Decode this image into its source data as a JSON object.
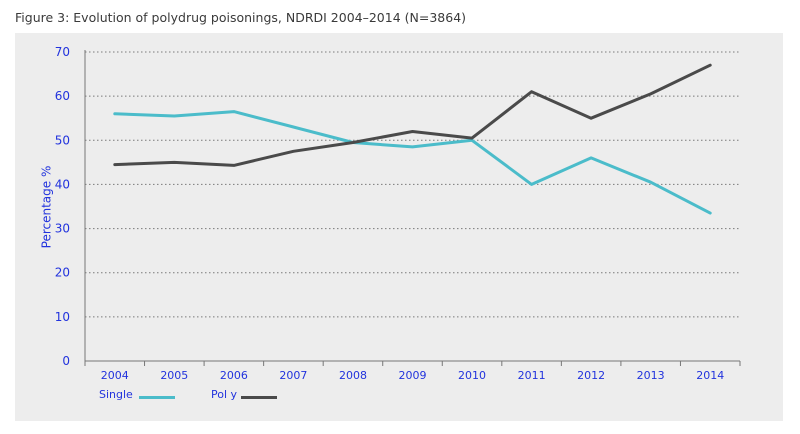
{
  "figure": {
    "title": "Figure 3: Evolution of polydrug poisonings, NDRDI 2004–2014 (N=3864)"
  },
  "colors": {
    "background": "#ffffff",
    "panel": "#ededed",
    "axis_text": "#2233dd",
    "grid": "#7a7a7a",
    "single": "#4bbcca",
    "poly": "#4a4a4a"
  },
  "chart_data": {
    "type": "line",
    "title": "Figure 3: Evolution of polydrug poisonings, NDRDI 2004–2014 (N=3864)",
    "xlabel": "",
    "ylabel": "Percentage %",
    "categories": [
      "2004",
      "2005",
      "2006",
      "2007",
      "2008",
      "2009",
      "2010",
      "2011",
      "2012",
      "2013",
      "2014"
    ],
    "ylim": [
      0,
      70
    ],
    "yticks": [
      0,
      10,
      20,
      30,
      40,
      50,
      60,
      70
    ],
    "grid": "horizontal dotted",
    "legend_position": "bottom-left",
    "series": [
      {
        "name": "Single",
        "color": "#4bbcca",
        "values": [
          56,
          55.5,
          56.5,
          53,
          49.5,
          48.5,
          50,
          40,
          46,
          40.5,
          33.5
        ]
      },
      {
        "name": "Pol y",
        "color": "#4a4a4a",
        "values": [
          44.5,
          45,
          44.3,
          47.5,
          49.5,
          52,
          50.5,
          61,
          55,
          60.5,
          67
        ]
      }
    ]
  }
}
